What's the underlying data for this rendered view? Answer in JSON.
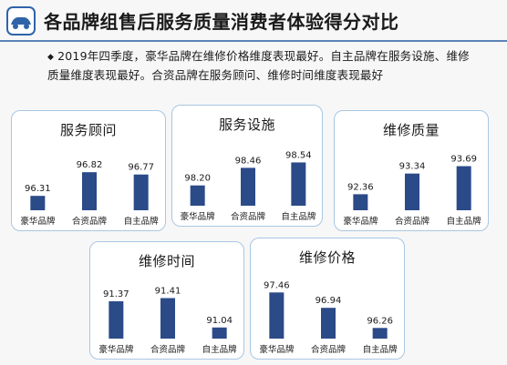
{
  "title": "各品牌组售后服务质量消费者体验得分对比",
  "summary": "2019年四季度，豪华品牌在维修价格维度表现最好。自主品牌在服务设施、维修质量维度表现最好。合资品牌在服务顾问、维修时间维度表现最好",
  "icons": {
    "bullet": "diamond-bullet-icon",
    "logo": "car-logo-icon"
  },
  "colors": {
    "bar": "#2b4a88",
    "card_border": "#a9c7e3",
    "accent_line": "#5a83b8"
  },
  "chart_data": [
    {
      "type": "bar",
      "title": "服务顾问",
      "categories": [
        "豪华品牌",
        "合资品牌",
        "自主品牌"
      ],
      "values": [
        96.31,
        96.82,
        96.77
      ],
      "labels": [
        "96.31",
        "96.82",
        "96.77"
      ],
      "ylim": [
        96.0,
        97.0
      ]
    },
    {
      "type": "bar",
      "title": "服务设施",
      "categories": [
        "豪华品牌",
        "合资品牌",
        "自主品牌"
      ],
      "values": [
        98.2,
        98.46,
        98.54
      ],
      "labels": [
        "98.20",
        "98.46",
        "98.54"
      ],
      "ylim": [
        97.9,
        98.6
      ]
    },
    {
      "type": "bar",
      "title": "维修质量",
      "categories": [
        "豪华品牌",
        "合资品牌",
        "自主品牌"
      ],
      "values": [
        92.36,
        93.34,
        93.69
      ],
      "labels": [
        "92.36",
        "93.34",
        "93.69"
      ],
      "ylim": [
        91.6,
        93.8
      ]
    },
    {
      "type": "bar",
      "title": "维修时间",
      "categories": [
        "豪华品牌",
        "合资品牌",
        "自主品牌"
      ],
      "values": [
        91.37,
        91.41,
        91.04
      ],
      "labels": [
        "91.37",
        "91.41",
        "91.04"
      ],
      "ylim": [
        90.9,
        91.45
      ]
    },
    {
      "type": "bar",
      "title": "维修价格",
      "categories": [
        "豪华品牌",
        "合资品牌",
        "自主品牌"
      ],
      "values": [
        97.46,
        96.94,
        96.26
      ],
      "labels": [
        "97.46",
        "96.94",
        "96.26"
      ],
      "ylim": [
        95.9,
        97.5
      ]
    }
  ]
}
